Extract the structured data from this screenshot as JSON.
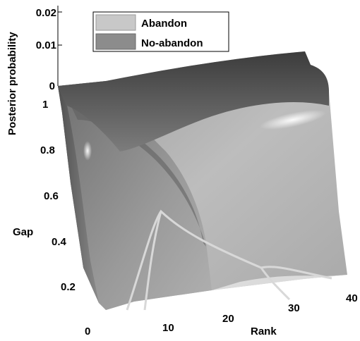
{
  "chart_data": {
    "type": "surface",
    "xlabel": "Rank",
    "ylabel": "Gap",
    "zlabel": "Posterior probability",
    "x_ticks": [
      "10",
      "20",
      "30",
      "40"
    ],
    "y_ticks": [
      "0",
      "0.2",
      "0.4",
      "0.6",
      "0.8",
      "1"
    ],
    "z_ticks": [
      "0",
      "0.01",
      "0.02"
    ],
    "xlim": [
      0,
      40
    ],
    "ylim": [
      0,
      1
    ],
    "zlim": [
      0,
      0.02
    ],
    "grid": false,
    "legend_position": "top",
    "series": [
      {
        "name": "Abandon",
        "color": "#c8c8c8"
      },
      {
        "name": "No-abandon",
        "color": "#8c8c8c"
      }
    ]
  }
}
